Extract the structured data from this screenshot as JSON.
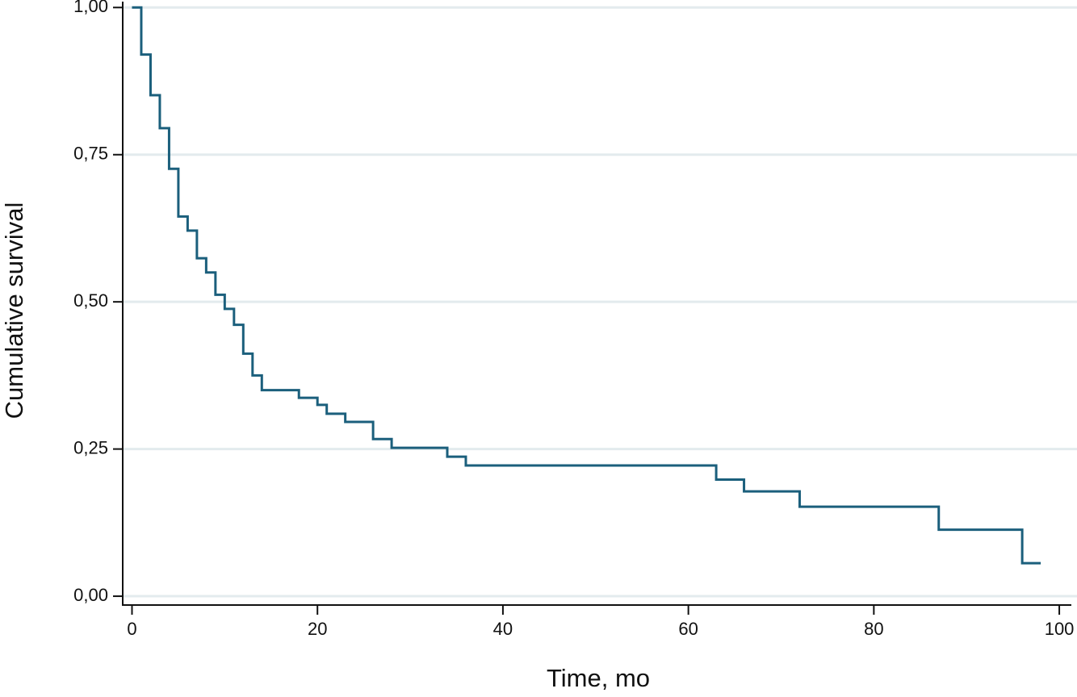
{
  "chart_data": {
    "type": "line",
    "step": "post",
    "x_label": "Time, mo",
    "y_label": "Cumulative survival",
    "x": [
      0,
      1,
      2,
      3,
      4,
      5,
      6,
      7,
      8,
      9,
      10,
      11,
      12,
      13,
      14,
      18,
      20,
      21,
      23,
      26,
      28,
      34,
      36,
      63,
      66,
      72,
      87,
      96,
      98
    ],
    "series": [
      {
        "color": "#1b5f7c",
        "values": [
          1.0,
          0.92,
          0.851,
          0.795,
          0.726,
          0.645,
          0.621,
          0.574,
          0.55,
          0.512,
          0.488,
          0.461,
          0.412,
          0.375,
          0.35,
          0.337,
          0.325,
          0.31,
          0.296,
          0.267,
          0.252,
          0.237,
          0.222,
          0.198,
          0.178,
          0.152,
          0.113,
          0.056,
          0.056
        ]
      }
    ],
    "xlim": [
      -1,
      101.3
    ],
    "ylim": [
      -0.015,
      1.01
    ],
    "xticks": [
      0,
      20,
      40,
      60,
      80,
      100
    ],
    "yticks": [
      {
        "value": 0,
        "label": "0,00"
      },
      {
        "value": 0.25,
        "label": "0,25"
      },
      {
        "value": 0.5,
        "label": "0,50"
      },
      {
        "value": 0.75,
        "label": "0,75"
      },
      {
        "value": 1,
        "label": "1,00"
      }
    ],
    "grid": true,
    "grid_color": "#e3ebee"
  }
}
